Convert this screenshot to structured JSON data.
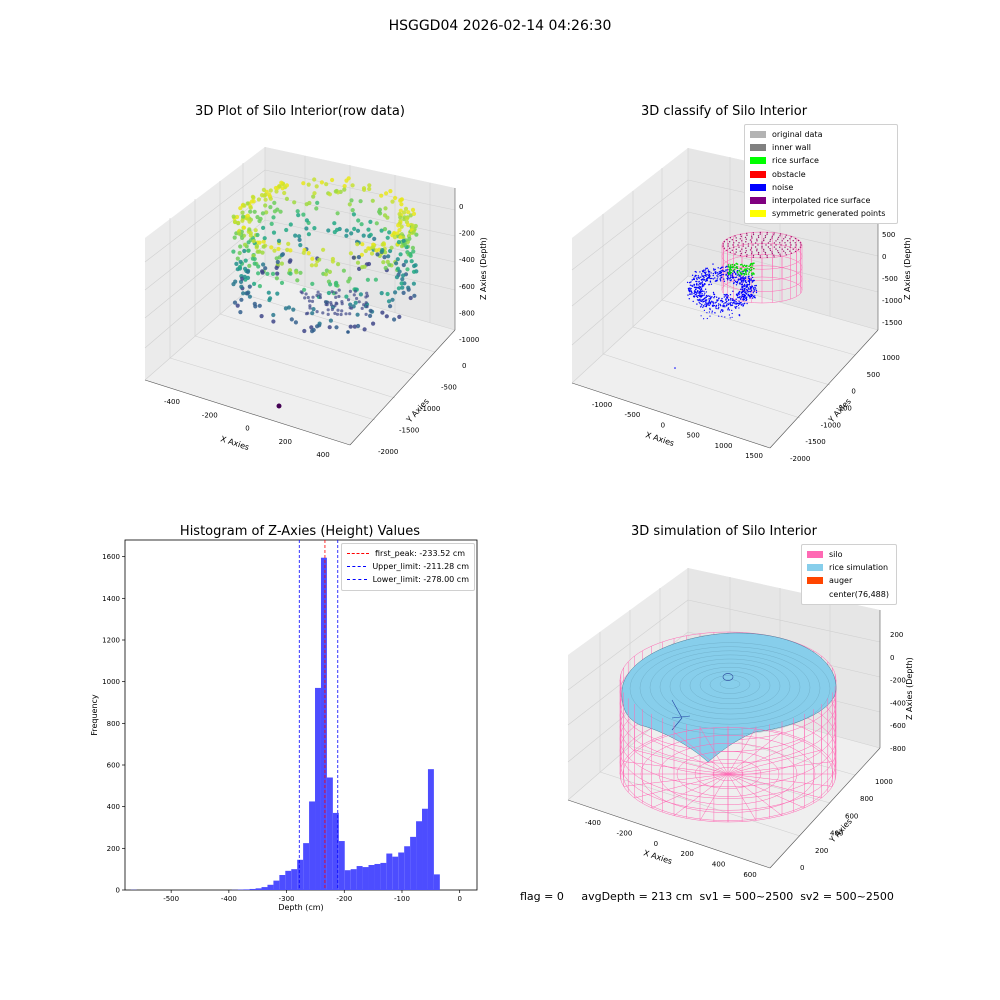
{
  "suptitle": "HSGGD04 2026-02-14 04:26:30",
  "panels": {
    "raw": {
      "title": "3D Plot of Silo Interior(row data)",
      "xlabel": "X Axies",
      "ylabel": "Y Axies",
      "zlabel": "Z Axies (Depth)",
      "xticks": [
        "-400",
        "-200",
        "0",
        "200",
        "400"
      ],
      "yticks": [
        "0",
        "-500",
        "-1000",
        "-1500",
        "-2000"
      ],
      "zticks": [
        "0",
        "-200",
        "-400",
        "-600",
        "-800",
        "-1000"
      ]
    },
    "classify": {
      "title": "3D classify of Silo Interior",
      "xlabel": "X Axies",
      "ylabel": "Y Axies",
      "zlabel": "Z Axies (Depth)",
      "xticks": [
        "-1000",
        "-500",
        "0",
        "500",
        "1000",
        "1500"
      ],
      "yticks": [
        "1000",
        "500",
        "0",
        "-500",
        "-1000",
        "-1500",
        "-2000"
      ],
      "zticks": [
        "500",
        "0",
        "-500",
        "-1000",
        "-1500"
      ],
      "legend": [
        {
          "label": "original data",
          "color": "#b3b3b3"
        },
        {
          "label": "inner wall",
          "color": "#808080"
        },
        {
          "label": "rice surface",
          "color": "#00ff00"
        },
        {
          "label": "obstacle",
          "color": "#ff0000"
        },
        {
          "label": "noise",
          "color": "#0000ff"
        },
        {
          "label": "interpolated rice surface",
          "color": "#800080"
        },
        {
          "label": "symmetric generated points",
          "color": "#ffff00"
        }
      ]
    },
    "simulation": {
      "title": "3D simulation of Silo Interior",
      "xlabel": "X Axies",
      "ylabel": "Y Axies",
      "zlabel": "Z Axies (Depth)",
      "xticks": [
        "-400",
        "-200",
        "0",
        "200",
        "400",
        "600"
      ],
      "yticks": [
        "0",
        "200",
        "400",
        "600",
        "800",
        "1000"
      ],
      "zticks": [
        "200",
        "0",
        "-200",
        "-400",
        "-600",
        "-800"
      ],
      "legend": [
        {
          "label": "silo",
          "color": "#ff69b4"
        },
        {
          "label": "rice simulation",
          "color": "#87ceeb"
        },
        {
          "label": "auger",
          "color": "#ff4500"
        },
        {
          "label": "center(76,488)",
          "color": ""
        }
      ]
    }
  },
  "chart_data": {
    "type": "bar",
    "title": "Histogram of Z-Axies (Height) Values",
    "xlabel": "Depth (cm)",
    "ylabel": "Frequency",
    "xlim": [
      -580,
      30
    ],
    "ylim": [
      0,
      1680
    ],
    "xticks": [
      -500,
      -400,
      -300,
      -200,
      -100,
      0
    ],
    "yticks": [
      0,
      200,
      400,
      600,
      800,
      1000,
      1200,
      1400,
      1600
    ],
    "bin_width": 10.3,
    "bins_left": [
      -570,
      -559.7,
      -549.4,
      -539.1,
      -528.8,
      -518.5,
      -508.2,
      -497.9,
      -487.6,
      -477.3,
      -467,
      -456.7,
      -446.4,
      -436.1,
      -425.8,
      -415.5,
      -405.2,
      -394.9,
      -384.6,
      -374.3,
      -364,
      -353.7,
      -343.4,
      -333.1,
      -322.8,
      -312.5,
      -302.2,
      -291.9,
      -281.6,
      -271.3,
      -261,
      -250.7,
      -240.4,
      -230.1,
      -219.8,
      -209.5,
      -199.2,
      -188.9,
      -178.6,
      -168.3,
      -158,
      -147.7,
      -137.4,
      -127.1,
      -116.8,
      -106.5,
      -96.2,
      -85.9,
      -75.6,
      -65.3,
      -55,
      -44.7,
      -34.4,
      -24.1,
      -13.8,
      -3.5
    ],
    "counts": [
      1,
      0,
      0,
      0,
      0,
      0,
      0,
      0,
      0,
      0,
      0,
      0,
      0,
      0,
      0,
      0,
      0,
      1,
      2,
      3,
      5,
      8,
      14,
      25,
      45,
      72,
      92,
      100,
      145,
      225,
      425,
      970,
      1595,
      540,
      370,
      235,
      95,
      100,
      115,
      110,
      120,
      125,
      130,
      175,
      160,
      180,
      210,
      255,
      330,
      390,
      580,
      75,
      0,
      0,
      0,
      0
    ],
    "vlines": [
      {
        "x": -233.52,
        "color": "#ff0000",
        "label": "first_peak: -233.52 cm"
      },
      {
        "x": -211.28,
        "color": "#0000ff",
        "label": "Upper_limit: -211.28 cm"
      },
      {
        "x": -278.0,
        "color": "#0000ff",
        "label": "Lower_limit: -278.00 cm"
      }
    ],
    "bar_color": "#4d4dff",
    "legend_position": "top-right"
  },
  "footer": {
    "text": "flag = 0     avgDepth = 213 cm  sv1 = 500~2500  sv2 = 500~2500"
  }
}
